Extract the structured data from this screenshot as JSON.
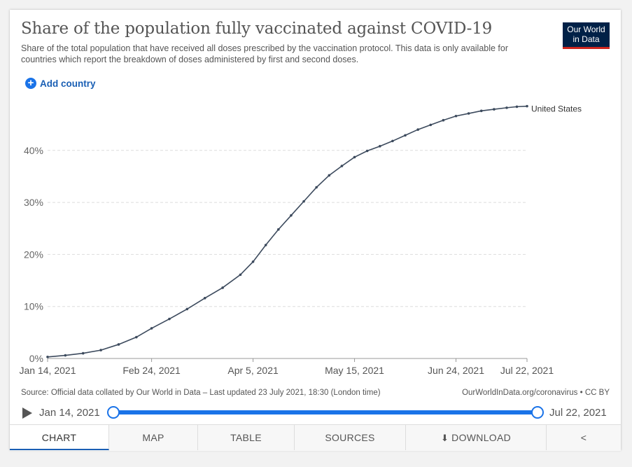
{
  "header": {
    "title": "Share of the population fully vaccinated against COVID-19",
    "subtitle": "Share of the total population that have received all doses prescribed by the vaccination protocol. This data is only available for countries which report the breakdown of doses administered by first and second doses.",
    "logo_line1": "Our World",
    "logo_line2": "in Data",
    "logo_color": "#002147",
    "logo_accent": "#ce261e"
  },
  "controls": {
    "add_country_label": "Add country",
    "accent": "#1a73e8"
  },
  "chart_data": {
    "type": "line",
    "title": "Share of the population fully vaccinated against COVID-19",
    "x_type": "date",
    "xlim": [
      "2021-01-14",
      "2021-07-22"
    ],
    "ylim": [
      0,
      46
    ],
    "y_ticks": [
      0,
      10,
      20,
      30,
      40
    ],
    "y_tick_labels": [
      "0%",
      "10%",
      "20%",
      "30%",
      "40%"
    ],
    "x_ticks": [
      "2021-01-14",
      "2021-02-24",
      "2021-04-05",
      "2021-05-15",
      "2021-06-24",
      "2021-07-22"
    ],
    "x_tick_labels": [
      "Jan 14, 2021",
      "Feb 24, 2021",
      "Apr 5, 2021",
      "May 15, 2021",
      "Jun 24, 2021",
      "Jul 22, 2021"
    ],
    "grid": "horizontal dashed",
    "series": [
      {
        "name": "United States",
        "color": "#3c4a5d",
        "x": [
          "2021-01-14",
          "2021-01-21",
          "2021-01-28",
          "2021-02-04",
          "2021-02-11",
          "2021-02-18",
          "2021-02-24",
          "2021-03-03",
          "2021-03-10",
          "2021-03-17",
          "2021-03-24",
          "2021-03-31",
          "2021-04-05",
          "2021-04-10",
          "2021-04-15",
          "2021-04-20",
          "2021-04-25",
          "2021-04-30",
          "2021-05-05",
          "2021-05-10",
          "2021-05-15",
          "2021-05-20",
          "2021-05-25",
          "2021-05-30",
          "2021-06-04",
          "2021-06-09",
          "2021-06-14",
          "2021-06-19",
          "2021-06-24",
          "2021-06-29",
          "2021-07-04",
          "2021-07-09",
          "2021-07-14",
          "2021-07-18",
          "2021-07-22"
        ],
        "y": [
          0.3,
          0.6,
          1.0,
          1.6,
          2.7,
          4.1,
          5.8,
          7.6,
          9.5,
          11.6,
          13.6,
          16.1,
          18.6,
          21.8,
          24.8,
          27.5,
          30.2,
          32.9,
          35.2,
          37.0,
          38.7,
          39.9,
          40.8,
          41.8,
          42.9,
          44.0,
          44.9,
          45.8,
          46.6,
          47.1,
          47.6,
          47.9,
          48.2,
          48.4,
          48.5
        ]
      }
    ]
  },
  "footer": {
    "source": "Source: Official data collated by Our World in Data – Last updated 23 July 2021, 18:30 (London time)",
    "license": "OurWorldInData.org/coronavirus • CC BY"
  },
  "timeline": {
    "start_label": "Jan 14, 2021",
    "end_label": "Jul 22, 2021"
  },
  "tabs": {
    "chart": "CHART",
    "map": "MAP",
    "table": "TABLE",
    "sources": "SOURCES",
    "download": "DOWNLOAD",
    "active": "chart"
  }
}
